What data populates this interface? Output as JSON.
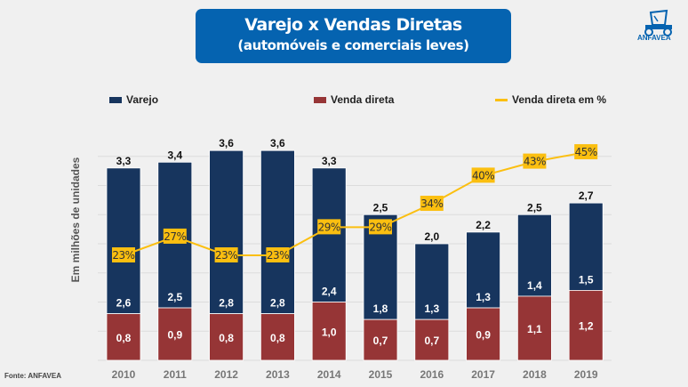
{
  "header": {
    "title": "Varejo x Vendas Diretas",
    "subtitle": "(automóveis e comerciais leves)",
    "logo_text": "ANFAVEA"
  },
  "source": "Fonte: ANFAVEA",
  "colors": {
    "varejo": "#17355e",
    "venda_direta": "#963536",
    "percent_line": "#fbbf10",
    "title_bg": "#0563b0"
  },
  "chart_data": {
    "type": "bar",
    "stacked": true,
    "title": "Varejo x Vendas Diretas",
    "ylabel": "Em milhões de unidades",
    "ylim": [
      0,
      3.6
    ],
    "grid": true,
    "legend_position": "top",
    "categories": [
      "2010",
      "2011",
      "2012",
      "2013",
      "2014",
      "2015",
      "2016",
      "2017",
      "2018",
      "2019"
    ],
    "series": [
      {
        "name": "Varejo",
        "values": [
          2.6,
          2.5,
          2.8,
          2.8,
          2.4,
          1.8,
          1.3,
          1.3,
          1.4,
          1.5
        ],
        "labels": [
          "2,6",
          "2,5",
          "2,8",
          "2,8",
          "2,4",
          "1,8",
          "1,3",
          "1,3",
          "1,4",
          "1,5"
        ]
      },
      {
        "name": "Venda direta",
        "values": [
          0.8,
          0.9,
          0.8,
          0.8,
          1.0,
          0.7,
          0.7,
          0.9,
          1.1,
          1.2
        ],
        "labels": [
          "0,8",
          "0,9",
          "0,8",
          "0,8",
          "1,0",
          "0,7",
          "0,7",
          "0,9",
          "1,1",
          "1,2"
        ]
      },
      {
        "name": "Venda direta em %",
        "type": "line",
        "values": [
          23,
          27,
          23,
          23,
          29,
          29,
          34,
          40,
          43,
          45
        ],
        "labels": [
          "23%",
          "27%",
          "23%",
          "23%",
          "29%",
          "29%",
          "34%",
          "40%",
          "43%",
          "45%"
        ]
      }
    ],
    "totals": [
      3.3,
      3.4,
      3.6,
      3.6,
      3.3,
      2.5,
      2.0,
      2.2,
      2.5,
      2.7
    ],
    "total_labels": [
      "3,3",
      "3,4",
      "3,6",
      "3,6",
      "3,3",
      "2,5",
      "2,0",
      "2,2",
      "2,5",
      "2,7"
    ]
  }
}
